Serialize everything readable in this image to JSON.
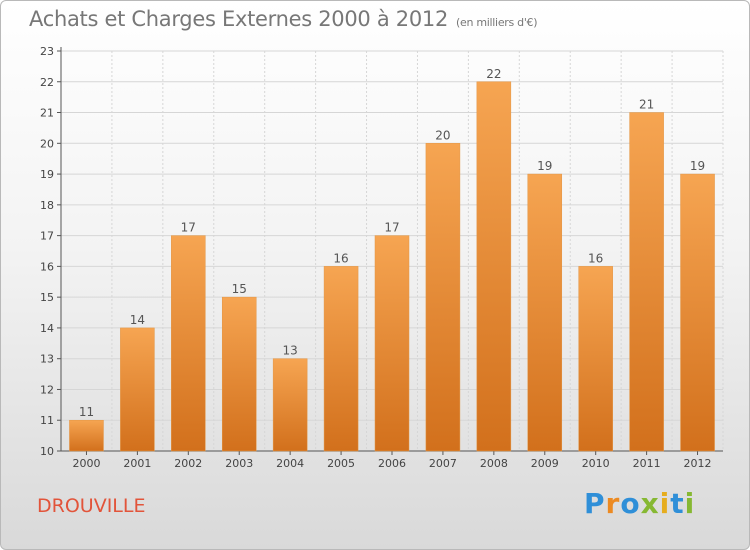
{
  "header": {
    "title": "Achats et Charges Externes 2000 à 2012",
    "subtitle": "(en milliers d'€)"
  },
  "footer": {
    "commune": "DROUVILLE",
    "logo": "Proxiti",
    "logo_letters": [
      "P",
      "r",
      "o",
      "x",
      "i",
      "t",
      "i"
    ]
  },
  "colors": {
    "bar_light": "#f6a552",
    "bar_dark": "#d2701c",
    "commune": "#e2543a",
    "grid": "#d6d6d6"
  },
  "chart_data": {
    "type": "bar",
    "title": "Achats et Charges Externes 2000 à 2012",
    "subtitle": "(en milliers d'€)",
    "xlabel": "",
    "ylabel": "",
    "categories": [
      "2000",
      "2001",
      "2002",
      "2003",
      "2004",
      "2005",
      "2006",
      "2007",
      "2008",
      "2009",
      "2010",
      "2011",
      "2012"
    ],
    "values": [
      11,
      14,
      17,
      15,
      13,
      16,
      17,
      20,
      22,
      19,
      16,
      21,
      19
    ],
    "ylim": [
      10,
      23
    ],
    "yticks": [
      10,
      11,
      12,
      13,
      14,
      15,
      16,
      17,
      18,
      19,
      20,
      21,
      22,
      23
    ],
    "grid": true,
    "data_labels": true
  }
}
